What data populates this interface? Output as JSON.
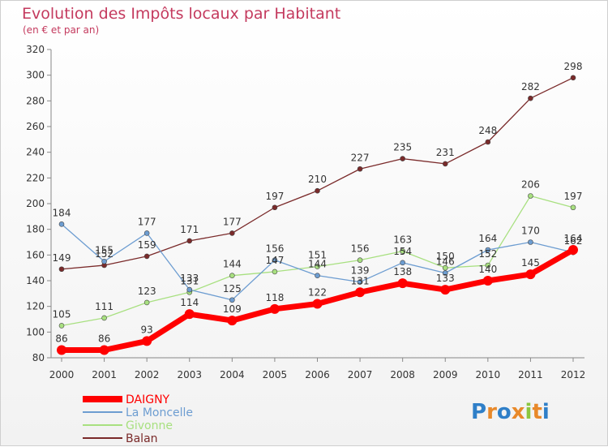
{
  "chart_data": {
    "type": "line",
    "title": "Evolution des Impôts locaux par Habitant",
    "subtitle": "(en € et par an)",
    "xlabel": "",
    "ylabel": "",
    "x": [
      "2000",
      "2001",
      "2002",
      "2003",
      "2004",
      "2005",
      "2006",
      "2007",
      "2008",
      "2009",
      "2010",
      "2011",
      "2012"
    ],
    "ylim": [
      80,
      320
    ],
    "yticks": [
      80,
      100,
      120,
      140,
      160,
      180,
      200,
      220,
      240,
      260,
      280,
      300,
      320
    ],
    "grid": false,
    "legend_position": "bottom-left",
    "series": [
      {
        "name": "DAIGNY",
        "color": "#ff0000",
        "values": [
          86,
          86,
          93,
          114,
          109,
          118,
          122,
          131,
          138,
          133,
          140,
          145,
          164
        ]
      },
      {
        "name": "La Moncelle",
        "color": "#6d9dd1",
        "values": [
          184,
          155,
          177,
          133,
          125,
          156,
          144,
          139,
          154,
          146,
          164,
          170,
          162
        ]
      },
      {
        "name": "Givonne",
        "color": "#a8e080",
        "values": [
          105,
          111,
          123,
          131,
          144,
          147,
          151,
          156,
          163,
          150,
          152,
          206,
          197
        ]
      },
      {
        "name": "Balan",
        "color": "#7a2a2a",
        "values": [
          149,
          152,
          159,
          171,
          177,
          197,
          210,
          227,
          235,
          231,
          248,
          282,
          298
        ]
      }
    ]
  },
  "logo": {
    "text": "Proxiti",
    "letters": [
      "P",
      "r",
      "o",
      "x",
      "i",
      "t",
      "i"
    ],
    "colors": [
      "#2f7fc8",
      "#e8892a",
      "#2f7fc8",
      "#e8892a",
      "#8cc63f",
      "#e8892a",
      "#2f7fc8"
    ]
  }
}
